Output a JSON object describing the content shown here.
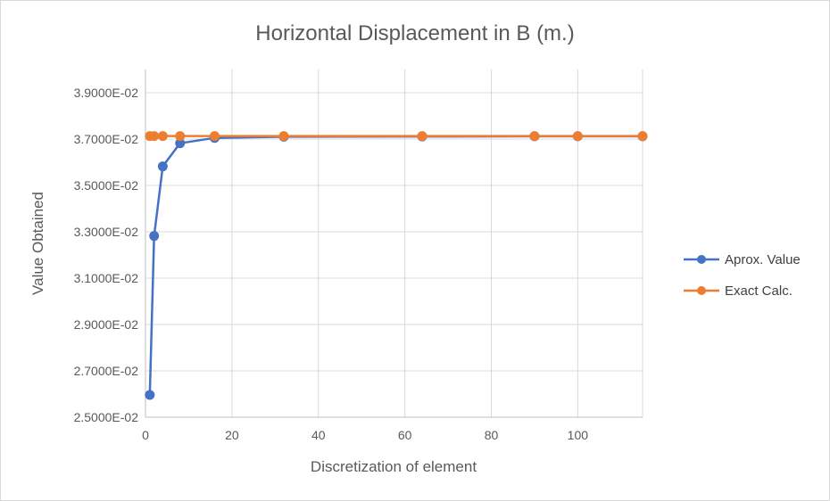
{
  "chart_data": {
    "type": "scatter",
    "title": "Horizontal Displacement  in B (m.)",
    "xlabel": "Discretization of element",
    "ylabel": "Value Obtained",
    "xlim": [
      0,
      115
    ],
    "ylim": [
      0.025,
      0.04
    ],
    "x_ticks": [
      0,
      20,
      40,
      60,
      80,
      100
    ],
    "y_ticks": [
      0.025,
      0.027,
      0.029,
      0.031,
      0.033,
      0.035,
      0.037,
      0.039
    ],
    "y_tick_labels": [
      "2.5000E-02",
      "2.7000E-02",
      "2.9000E-02",
      "3.1000E-02",
      "3.3000E-02",
      "3.5000E-02",
      "3.7000E-02",
      "3.9000E-02"
    ],
    "grid": true,
    "legend_position": "right",
    "lines_connect_points": true,
    "series": [
      {
        "name": "Aprox. Value",
        "color": "#4472c4",
        "x": [
          1,
          2,
          4,
          8,
          16,
          32,
          64,
          90,
          100,
          115
        ],
        "y": [
          0.02596,
          0.03282,
          0.03582,
          0.03682,
          0.03705,
          0.0371,
          0.03711,
          0.03712,
          0.03712,
          0.03712
        ]
      },
      {
        "name": "Exact Calc.",
        "color": "#ed7d31",
        "x": [
          1,
          2,
          4,
          8,
          16,
          32,
          64,
          90,
          100,
          115
        ],
        "y": [
          0.03713,
          0.03713,
          0.03713,
          0.03713,
          0.03713,
          0.03713,
          0.03713,
          0.03713,
          0.03713,
          0.03713
        ]
      }
    ]
  }
}
